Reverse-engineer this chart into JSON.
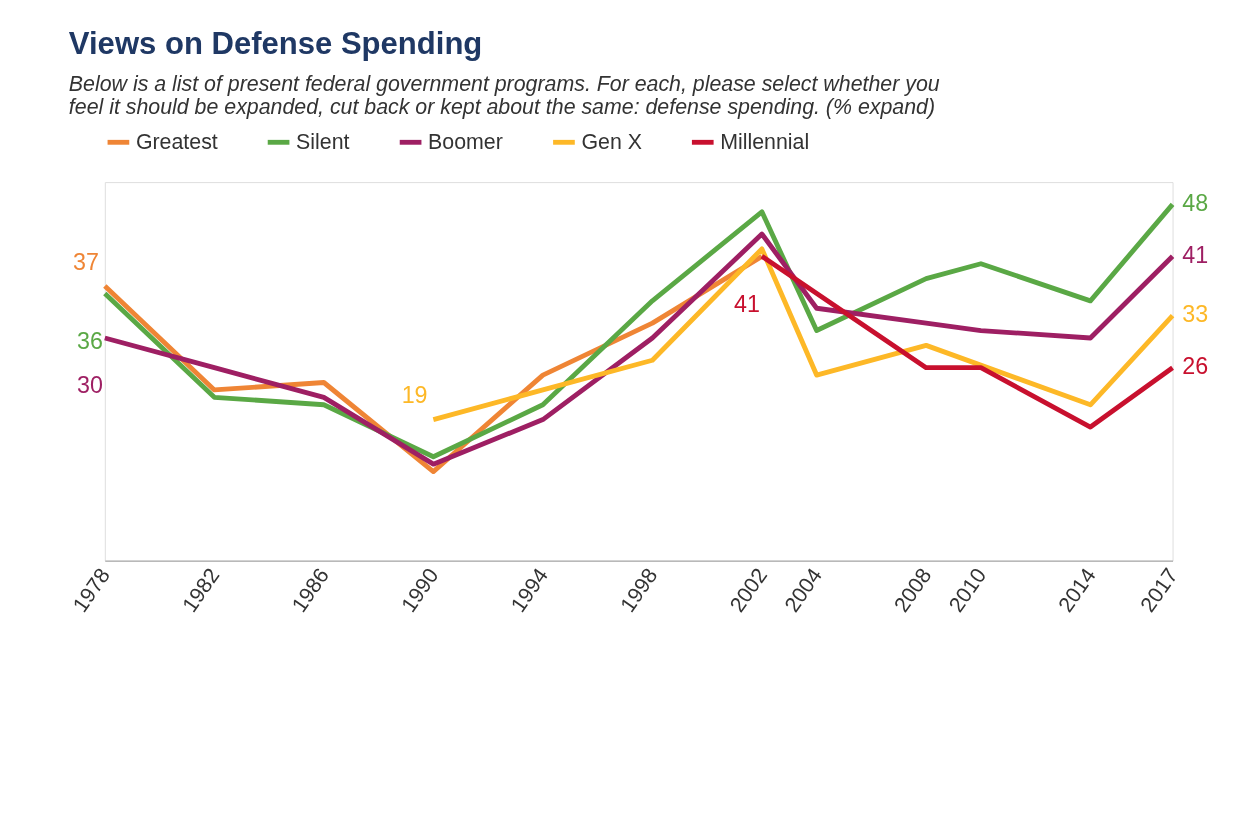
{
  "chart_data": {
    "type": "line",
    "title": "Views on Defense Spending",
    "subtitle": "Below is a list of present federal government programs. For each, please select whether you feel it should be expanded, cut back or kept about the same: defense spending. (% expand)",
    "x": [
      1978,
      1982,
      1986,
      1990,
      1994,
      1998,
      2002,
      2004,
      2008,
      2010,
      2014,
      2017
    ],
    "xlim": [
      1978,
      2017
    ],
    "xticks": [
      1978,
      1982,
      1986,
      1990,
      1994,
      1998,
      2002,
      2004,
      2008,
      2010,
      2014,
      2017
    ],
    "ylim": [
      0,
      51
    ],
    "tick_labels": "x",
    "grid": false,
    "legend": "top",
    "marker": "none",
    "line_style": "solid",
    "series": [
      {
        "name": "Greatest",
        "color": "#ef8535",
        "values": [
          37,
          23,
          24,
          12,
          25,
          32,
          41,
          null,
          null,
          null,
          null,
          null
        ],
        "value_labels": [
          "37",
          null,
          null,
          null,
          null,
          null,
          null,
          null,
          null,
          null,
          null,
          null
        ]
      },
      {
        "name": "Silent",
        "color": "#5aa845",
        "values": [
          36,
          22,
          21,
          14,
          21,
          35,
          47,
          31,
          38,
          40,
          35,
          48
        ],
        "value_labels": [
          "36",
          null,
          null,
          null,
          null,
          null,
          null,
          null,
          null,
          null,
          null,
          "48"
        ]
      },
      {
        "name": "Boomer",
        "color": "#9e1f63",
        "values": [
          30,
          26,
          22,
          13,
          19,
          30,
          44,
          34,
          32,
          31,
          30,
          41
        ],
        "value_labels": [
          "30",
          null,
          null,
          null,
          null,
          null,
          null,
          null,
          null,
          null,
          null,
          "41"
        ]
      },
      {
        "name": "Gen X",
        "color": "#fdb827",
        "values": [
          null,
          null,
          null,
          19,
          23,
          27,
          42,
          25,
          29,
          null,
          21,
          33
        ],
        "value_labels": [
          null,
          null,
          null,
          "19",
          null,
          null,
          null,
          null,
          null,
          null,
          null,
          "33"
        ]
      },
      {
        "name": "Millennial",
        "color": "#c8102e",
        "values": [
          null,
          null,
          null,
          null,
          null,
          null,
          41,
          null,
          26,
          26,
          18,
          26
        ],
        "value_labels": [
          null,
          null,
          null,
          null,
          null,
          null,
          "41",
          null,
          null,
          null,
          null,
          "26"
        ]
      }
    ]
  }
}
